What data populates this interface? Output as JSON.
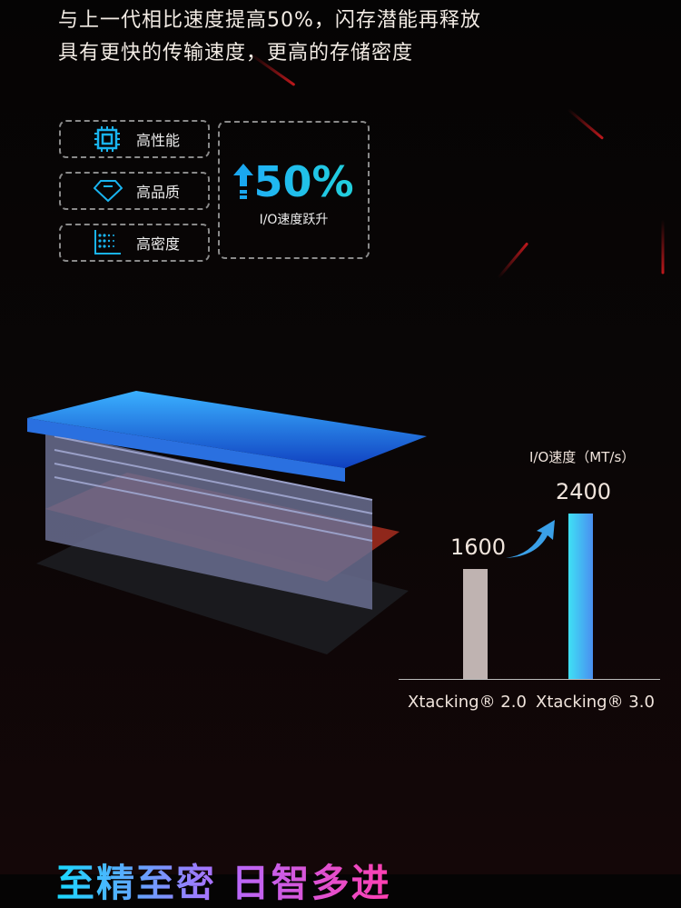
{
  "headline": {
    "line1": "与上一代相比速度提高50%，闪存潜能再释放",
    "line2": "具有更快的传输速度，更高的存储密度"
  },
  "features": [
    {
      "icon": "chip-icon",
      "label": "高性能"
    },
    {
      "icon": "diamond-icon",
      "label": "高品质"
    },
    {
      "icon": "density-grid-icon",
      "label": "高密度"
    }
  ],
  "highlight": {
    "icon": "arrow-up-icon",
    "value": "50%",
    "caption": "I/O速度跃升"
  },
  "chart_data": {
    "type": "bar",
    "title": "I/O速度（MT/s）",
    "categories": [
      "Xtacking® 2.0",
      "Xtacking® 3.0"
    ],
    "values": [
      1600,
      2400
    ],
    "data_labels": [
      "1600",
      "2400"
    ],
    "colors": [
      "#bfb3b1",
      "#3fc8f5"
    ],
    "ylim": [
      0,
      2400
    ],
    "grid": false
  },
  "bottom_title": "至精至密 日智多进"
}
